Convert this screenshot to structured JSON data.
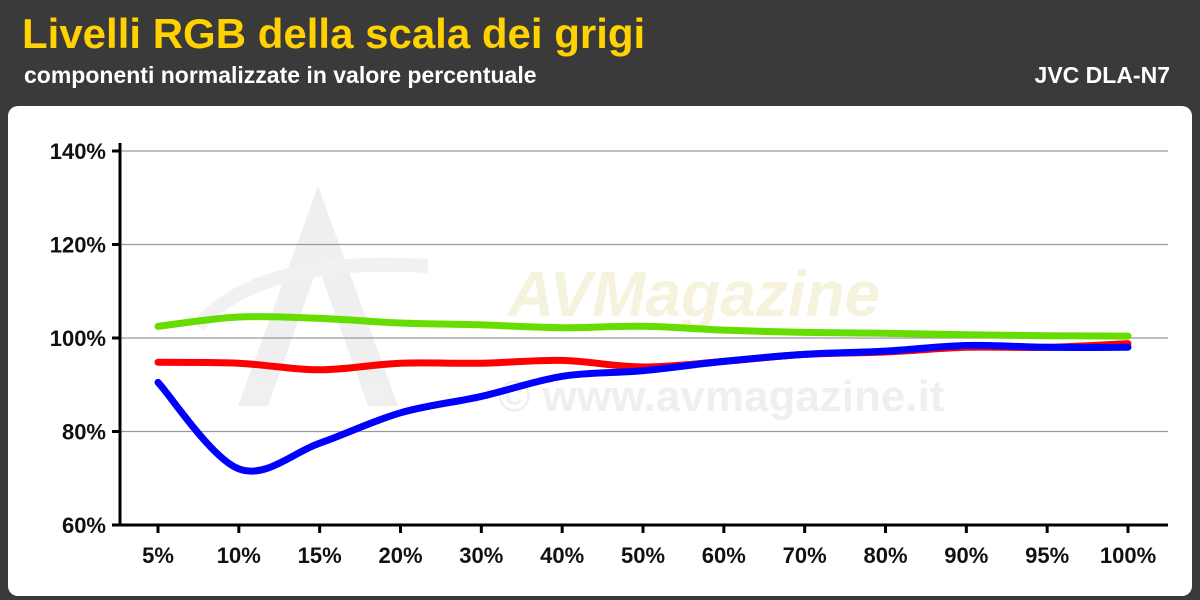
{
  "header": {
    "title": "Livelli RGB della scala dei grigi",
    "subtitle": "componenti normalizzate in valore percentuale",
    "device": "JVC DLA-N7"
  },
  "watermark": {
    "brand": "AVMagazine",
    "url": "© www.avmagazine.it"
  },
  "chart_data": {
    "type": "line",
    "title": "Livelli RGB della scala dei grigi",
    "subtitle": "componenti normalizzate in valore percentuale",
    "categories": [
      "5%",
      "10%",
      "15%",
      "20%",
      "30%",
      "40%",
      "50%",
      "60%",
      "70%",
      "80%",
      "90%",
      "95%",
      "100%"
    ],
    "ylim": [
      60,
      140
    ],
    "yticks": [
      60,
      80,
      100,
      120,
      140
    ],
    "ytick_labels": [
      "60%",
      "80%",
      "100%",
      "120%",
      "140%"
    ],
    "grid": true,
    "series": [
      {
        "color": "#66dd00",
        "values": [
          102.5,
          104.5,
          104.2,
          103.2,
          102.8,
          102.2,
          102.5,
          101.7,
          101.2,
          101.0,
          100.7,
          100.5,
          100.4
        ]
      },
      {
        "color": "#ff0000",
        "values": [
          94.8,
          94.6,
          93.2,
          94.6,
          94.6,
          95.2,
          93.8,
          95.0,
          96.5,
          97.0,
          98.0,
          98.0,
          98.8
        ]
      },
      {
        "color": "#0000ff",
        "values": [
          90.5,
          72.0,
          77.5,
          84.0,
          87.5,
          91.8,
          93.0,
          95.0,
          96.5,
          97.2,
          98.4,
          98.0,
          98.0
        ]
      }
    ]
  }
}
